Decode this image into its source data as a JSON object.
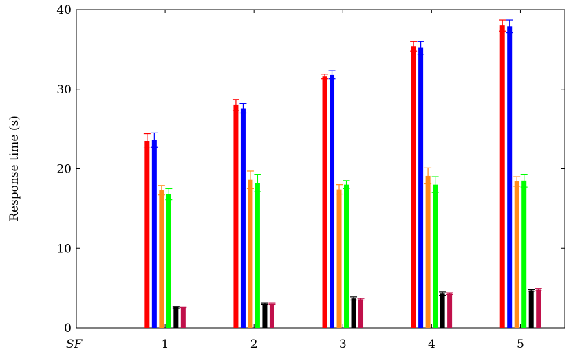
{
  "chart_data": {
    "type": "bar",
    "title": "",
    "xlabel": "SF",
    "ylabel": "Response time (s)",
    "ylim": [
      0,
      40
    ],
    "xlim": [
      0,
      5.5
    ],
    "categories": [
      1,
      2,
      3,
      4,
      5
    ],
    "category_tick_labels": [
      "1",
      "2",
      "3",
      "4",
      "5"
    ],
    "y_ticks": [
      0,
      10,
      20,
      30,
      40
    ],
    "y_tick_labels": [
      "0",
      "10",
      "20",
      "30",
      "40"
    ],
    "grid": false,
    "legend": "none",
    "error_bars": true,
    "series": [
      {
        "color": "#ff0000",
        "values": [
          23.5,
          28.0,
          31.6,
          35.4,
          38.0
        ],
        "errors": [
          0.9,
          0.7,
          0.3,
          0.6,
          0.7
        ]
      },
      {
        "color": "#0000ff",
        "values": [
          23.6,
          27.6,
          31.8,
          35.2,
          37.9
        ],
        "errors": [
          0.9,
          0.6,
          0.5,
          0.8,
          0.8
        ]
      },
      {
        "color": "#ff8c1a",
        "values": [
          17.3,
          18.6,
          17.4,
          19.1,
          18.4
        ],
        "errors": [
          0.6,
          1.1,
          0.6,
          1.0,
          0.6
        ]
      },
      {
        "color": "#00ff00",
        "values": [
          16.8,
          18.2,
          18.0,
          18.0,
          18.5
        ],
        "errors": [
          0.7,
          1.1,
          0.5,
          1.0,
          0.8
        ]
      },
      {
        "color": "#000000",
        "values": [
          2.6,
          3.0,
          3.7,
          4.3,
          4.7
        ],
        "errors": [
          0.1,
          0.1,
          0.2,
          0.2,
          0.1
        ]
      },
      {
        "color": "#c0104a",
        "values": [
          2.6,
          3.0,
          3.6,
          4.3,
          4.8
        ],
        "errors": [
          0.05,
          0.1,
          0.1,
          0.1,
          0.15
        ]
      }
    ]
  }
}
